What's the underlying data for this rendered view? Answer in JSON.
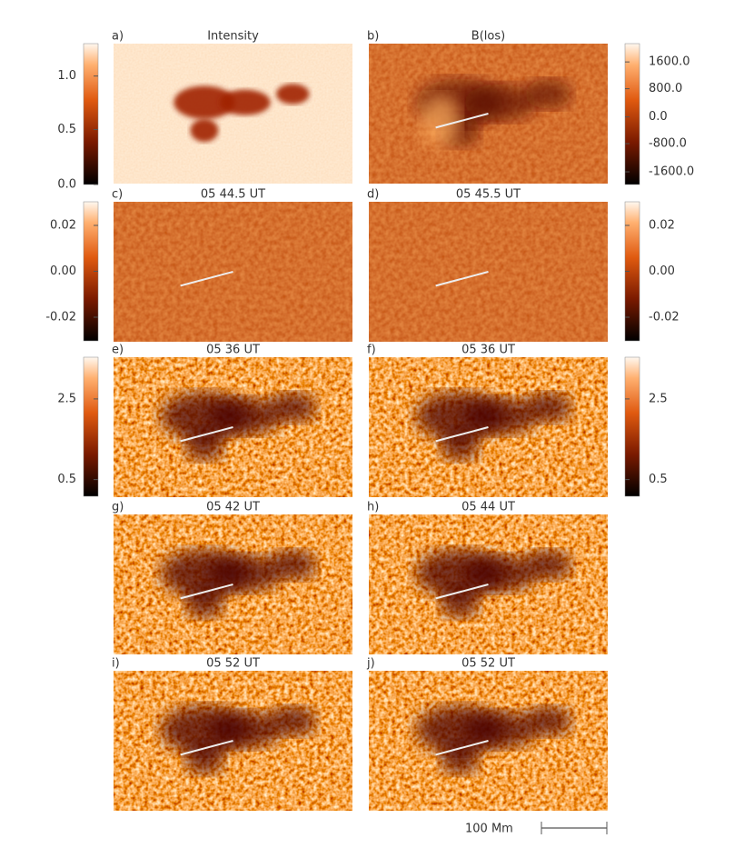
{
  "panels": [
    {
      "letter": "a)",
      "title": "Intensity"
    },
    {
      "letter": "b)",
      "title": "B(los)"
    },
    {
      "letter": "c)",
      "title": "05 44.5 UT"
    },
    {
      "letter": "d)",
      "title": "05 45.5 UT"
    },
    {
      "letter": "e)",
      "title": "05 36 UT"
    },
    {
      "letter": "f)",
      "title": "05 36 UT"
    },
    {
      "letter": "g)",
      "title": "05 42 UT"
    },
    {
      "letter": "h)",
      "title": "05 44 UT"
    },
    {
      "letter": "i)",
      "title": "05 52 UT"
    },
    {
      "letter": "j)",
      "title": "05 52 UT"
    }
  ],
  "colorbars": [
    {
      "ticks": [
        "1.0",
        "0.5",
        "0.0"
      ]
    },
    {
      "ticks": [
        "1600.0",
        "800.0",
        "0.0",
        "-800.0",
        "-1600.0"
      ]
    },
    {
      "ticks": [
        "0.02",
        "0.00",
        "-0.02"
      ]
    },
    {
      "ticks": [
        "0.02",
        "0.00",
        "-0.02"
      ]
    },
    {
      "ticks": [
        "2.5",
        "0.5"
      ]
    },
    {
      "ticks": [
        "2.5",
        "0.5"
      ]
    }
  ],
  "scale_bar": {
    "label": "100 Mm"
  }
}
